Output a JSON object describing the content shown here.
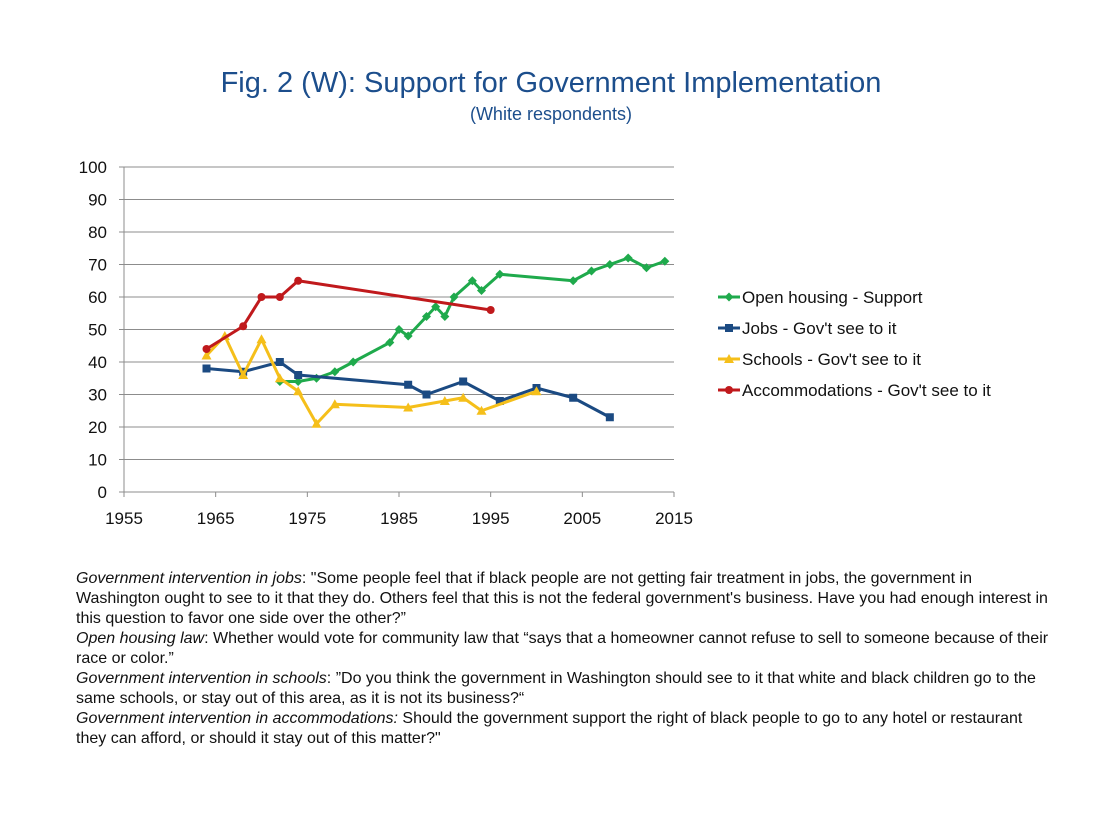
{
  "chart_data": {
    "type": "line",
    "title": "Fig. 2 (W): Support for Government Implementation",
    "subtitle": "(White respondents)",
    "xlabel": "",
    "ylabel": "",
    "xlim": [
      1955,
      2015
    ],
    "ylim": [
      0,
      100
    ],
    "x_ticks": [
      1955,
      1965,
      1975,
      1985,
      1995,
      2005,
      2015
    ],
    "y_ticks": [
      0,
      10,
      20,
      30,
      40,
      50,
      60,
      70,
      80,
      90,
      100
    ],
    "grid": "horizontal",
    "legend_position": "right",
    "series": [
      {
        "name": "Open housing - Support",
        "color": "#1faa4c",
        "marker": "diamond",
        "x": [
          1972,
          1974,
          1976,
          1978,
          1980,
          1984,
          1985,
          1986,
          1988,
          1989,
          1990,
          1991,
          1993,
          1994,
          1996,
          2004,
          2006,
          2008,
          2010,
          2012,
          2014
        ],
        "y": [
          34,
          34,
          35,
          37,
          40,
          46,
          50,
          48,
          54,
          57,
          54,
          60,
          65,
          62,
          67,
          65,
          68,
          70,
          72,
          69,
          71
        ]
      },
      {
        "name": "Jobs - Gov't see to it",
        "color": "#1b4a82",
        "marker": "square",
        "x": [
          1964,
          1968,
          1972,
          1974,
          1986,
          1988,
          1992,
          1996,
          2000,
          2004,
          2008
        ],
        "y": [
          38,
          37,
          40,
          36,
          33,
          30,
          34,
          28,
          32,
          29,
          23
        ]
      },
      {
        "name": "Schools - Gov't see to it",
        "color": "#f5bf1a",
        "marker": "triangle",
        "x": [
          1964,
          1966,
          1968,
          1970,
          1972,
          1974,
          1976,
          1978,
          1986,
          1990,
          1992,
          1994,
          2000
        ],
        "y": [
          42,
          48,
          36,
          47,
          35,
          31,
          21,
          27,
          26,
          28,
          29,
          25,
          31
        ]
      },
      {
        "name": "Accommodations - Gov't see to it",
        "color": "#c0191c",
        "marker": "circle",
        "x": [
          1964,
          1968,
          1970,
          1972,
          1974,
          1995
        ],
        "y": [
          44,
          51,
          60,
          60,
          65,
          56
        ]
      }
    ]
  },
  "notes": [
    {
      "label": "Government intervention in jobs",
      "sep": ": ",
      "text": "\"Some people feel that if black people are not getting fair treatment in jobs, the government in Washington ought to see to it that they do. Others feel that this is not the federal government's business. Have you had enough interest in this question to favor one side over the other?”"
    },
    {
      "label": "Open housing law",
      "sep": ": ",
      "text": "Whether would vote for community law that “says that a homeowner cannot refuse to sell to someone because of their race or color.”"
    },
    {
      "label": "Government intervention in schools",
      "sep": ": ",
      "text": "”Do you think the government in Washington should see to it that white and black children go to the same schools, or stay out of this area, as it is not its business?“"
    },
    {
      "label": "Government intervention in accommodations:",
      "sep": " ",
      "text": "Should the government support the right of black people to go to any hotel or restaurant they can afford, or should it stay out of this matter?\""
    }
  ]
}
